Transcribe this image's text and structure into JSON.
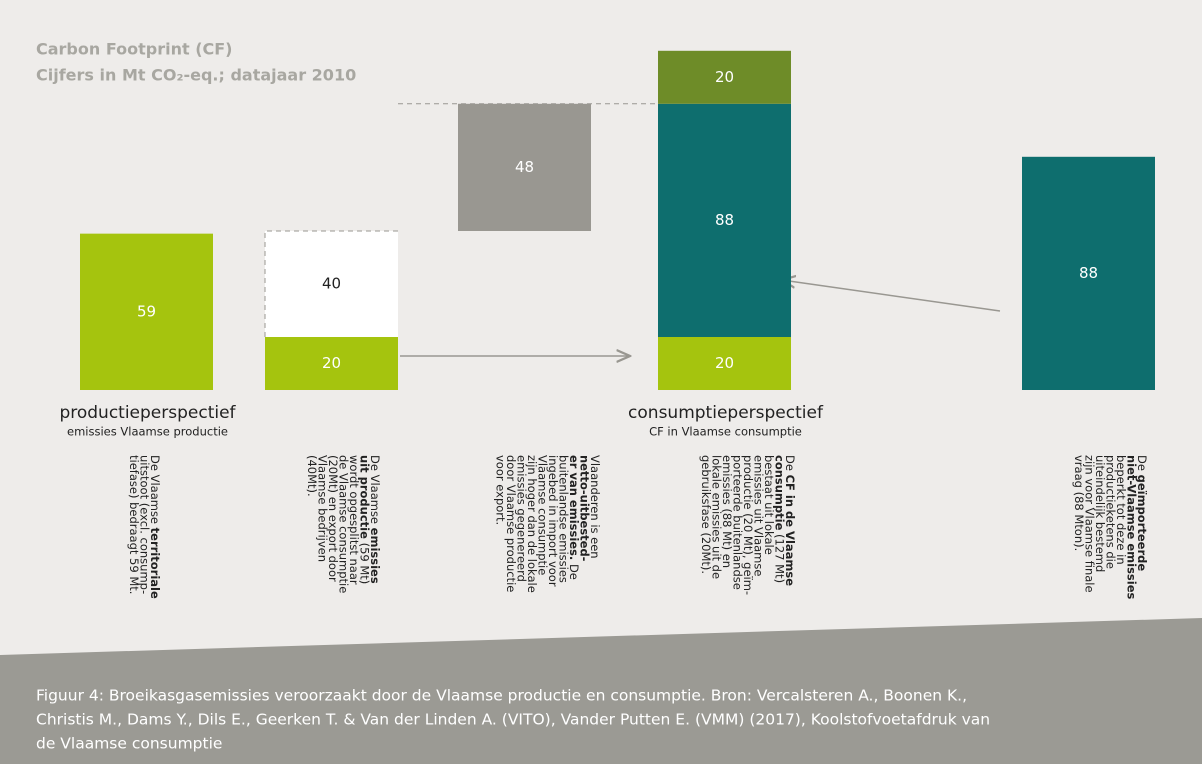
{
  "chart_data": {
    "type": "waterfall",
    "title": "Carbon Footprint (CF)",
    "subtitle": "Cijfers in Mt CO₂-eq.; datajaar 2010",
    "columns": [
      {
        "label": "productieperspectief",
        "sublabel": "emissies Vlaamse productie",
        "segments": [
          {
            "value": 59,
            "color": "#a5c40e"
          }
        ],
        "description": [
          [
            {
              "text": "De Vlaamse "
            },
            {
              "text": "territoriale",
              "bold": true
            }
          ],
          [
            {
              "text": "uitstoot (excl. consump-"
            }
          ],
          [
            {
              "text": "tiefase) bedraagt 59 Mt."
            }
          ]
        ]
      },
      {
        "segments": [
          {
            "value": 20,
            "color": "#a5c40e"
          },
          {
            "value": 40,
            "color": "#ffffff",
            "border": "dashed"
          }
        ],
        "description": [
          [
            {
              "text": "De Vlaamse "
            },
            {
              "text": "emissies",
              "bold": true
            }
          ],
          [
            {
              "text": "uit productie",
              "bold": true
            },
            {
              "text": " (59 Mt)"
            }
          ],
          [
            {
              "text": "wordt opgesplitst naar"
            }
          ],
          [
            {
              "text": "de Vlaamse consumptie"
            }
          ],
          [
            {
              "text": "(20Mt) en export door"
            }
          ],
          [
            {
              "text": "Vlaamse bedrijven"
            }
          ],
          [
            {
              "text": "(40Mt)."
            }
          ]
        ]
      },
      {
        "floating": true,
        "segments": [
          {
            "value": 48,
            "color": "#999791"
          }
        ],
        "description": [
          [
            {
              "text": "Vlaanderen is een"
            }
          ],
          [
            {
              "text": "netto-uitbested-",
              "bold": true
            }
          ],
          [
            {
              "text": "er van emissies.",
              "bold": true
            },
            {
              "text": " De"
            }
          ],
          [
            {
              "text": "buitenlandse emissies"
            }
          ],
          [
            {
              "text": "ingebed in import voor"
            }
          ],
          [
            {
              "text": "Vlaamse consumptie"
            }
          ],
          [
            {
              "text": "zijn hoger dan de lokale"
            }
          ],
          [
            {
              "text": "emissies gegenereerd"
            }
          ],
          [
            {
              "text": "door Vlaamse productie"
            }
          ],
          [
            {
              "text": "voor export."
            }
          ]
        ]
      },
      {
        "label": "consumptieperspectief",
        "sublabel": "CF in Vlaamse consumptie",
        "segments": [
          {
            "value": 20,
            "color": "#a5c40e"
          },
          {
            "value": 88,
            "color": "#0e6e6e"
          },
          {
            "value": 20,
            "color": "#6e8c28"
          }
        ],
        "description": [
          [
            {
              "text": "De "
            },
            {
              "text": "CF in de Vlaamse",
              "bold": true
            }
          ],
          [
            {
              "text": "consumptie",
              "bold": true
            },
            {
              "text": " (127 Mt)"
            }
          ],
          [
            {
              "text": "bestaat uit lokale"
            }
          ],
          [
            {
              "text": "emissies uit Vlaamse"
            }
          ],
          [
            {
              "text": "productie (20 Mt), geïm-"
            }
          ],
          [
            {
              "text": "porteerde buitenlandse"
            }
          ],
          [
            {
              "text": "emissies (88 Mt) en"
            }
          ],
          [
            {
              "text": "lokale emissies uit de"
            }
          ],
          [
            {
              "text": "gebruiksfase (20Mt)."
            }
          ]
        ]
      },
      {
        "segments": [
          {
            "value": 88,
            "color": "#0e6e6e"
          }
        ],
        "description": [
          [
            {
              "text": "De "
            },
            {
              "text": "geïmporteerde",
              "bold": true
            }
          ],
          [
            {
              "text": "niet-Vlaamse emissies",
              "bold": true
            }
          ],
          [
            {
              "text": "beperkt tot deze in"
            }
          ],
          [
            {
              "text": "productieketens die"
            }
          ],
          [
            {
              "text": "uiteindelijk bestemd"
            }
          ],
          [
            {
              "text": "zijn voor Vlaamse finale"
            }
          ],
          [
            {
              "text": "vraag (88 Mton)."
            }
          ]
        ]
      }
    ],
    "caption": [
      "Figuur 4: Broeikasgasemissies veroorzaakt door de Vlaamse productie en consumptie. Bron: Vercalsteren A., Boonen K.,",
      "Christis M., Dams Y., Dils E., Geerken T. & Van der Linden A. (VITO), Vander Putten E. (VMM) (2017), Koolstofvoetafdruk van",
      "de Vlaamse consumptie"
    ]
  }
}
